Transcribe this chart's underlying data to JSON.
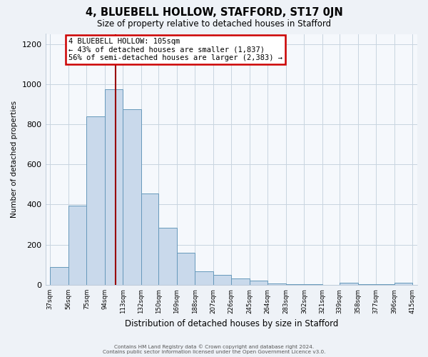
{
  "title": "4, BLUEBELL HOLLOW, STAFFORD, ST17 0JN",
  "subtitle": "Size of property relative to detached houses in Stafford",
  "xlabel": "Distribution of detached houses by size in Stafford",
  "ylabel": "Number of detached properties",
  "footer1": "Contains HM Land Registry data © Crown copyright and database right 2024.",
  "footer2": "Contains public sector information licensed under the Open Government Licence v3.0.",
  "bin_edges": [
    37,
    56,
    75,
    94,
    113,
    132,
    150,
    169,
    188,
    207,
    226,
    245,
    264,
    283,
    302,
    321,
    339,
    358,
    377,
    396,
    415
  ],
  "bar_heights": [
    90,
    395,
    840,
    975,
    875,
    455,
    285,
    160,
    68,
    48,
    32,
    20,
    8,
    3,
    2,
    1,
    10,
    5,
    5,
    10
  ],
  "bar_color": "#c9d9eb",
  "bar_edge_color": "#6699bb",
  "property_size": 105,
  "red_line_color": "#990000",
  "annotation_text": "4 BLUEBELL HOLLOW: 105sqm\n← 43% of detached houses are smaller (1,837)\n56% of semi-detached houses are larger (2,383) →",
  "annotation_box_edge": "#cc0000",
  "ylim": [
    0,
    1250
  ],
  "yticks": [
    0,
    200,
    400,
    600,
    800,
    1000,
    1200
  ],
  "bg_color": "#eef2f7",
  "plot_bg_color": "#f5f8fc",
  "grid_color": "#c8d4e0"
}
